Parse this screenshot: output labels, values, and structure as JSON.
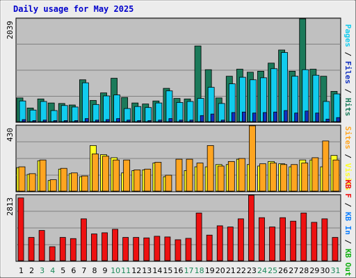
{
  "title": "Daily usage for May 2025",
  "colors": {
    "background": "#ececec",
    "panel": "#c0c0c0",
    "hits": "#1b7a5a",
    "files": "#11ccee",
    "pages": "#1030c0",
    "visits": "#ffff22",
    "sites": "#ffa520",
    "kbin": "#0f80ff",
    "kbout": "#11b011",
    "kbf": "#ee1111",
    "weekend_label": "#1b8a5a"
  },
  "chart_data": [
    {
      "type": "bar",
      "categories": [
        "1",
        "2",
        "3",
        "4",
        "5",
        "6",
        "7",
        "8",
        "9",
        "10",
        "11",
        "12",
        "13",
        "14",
        "15",
        "16",
        "17",
        "18",
        "19",
        "20",
        "21",
        "22",
        "23",
        "24",
        "25",
        "26",
        "27",
        "28",
        "29",
        "30",
        "31"
      ],
      "ymax_label": "2039",
      "ylim": [
        0,
        2039
      ],
      "series": [
        {
          "name": "Hits",
          "values": [
            470,
            270,
            450,
            370,
            360,
            330,
            830,
            420,
            570,
            860,
            480,
            370,
            350,
            410,
            660,
            460,
            450,
            1500,
            1030,
            470,
            900,
            1040,
            980,
            1000,
            1160,
            1420,
            1000,
            2039,
            1040,
            900,
            600
          ]
        },
        {
          "name": "Files",
          "values": [
            410,
            230,
            400,
            220,
            320,
            290,
            770,
            340,
            510,
            530,
            260,
            300,
            280,
            370,
            610,
            380,
            400,
            460,
            680,
            360,
            750,
            880,
            830,
            870,
            1050,
            1370,
            900,
            1030,
            920,
            400,
            550
          ]
        },
        {
          "name": "Pages",
          "values": [
            40,
            20,
            30,
            20,
            20,
            20,
            60,
            30,
            40,
            60,
            30,
            20,
            20,
            30,
            60,
            30,
            30,
            120,
            150,
            30,
            180,
            190,
            170,
            180,
            190,
            220,
            170,
            210,
            170,
            50,
            80
          ]
        }
      ],
      "legend": [
        "Pages",
        "Files",
        "Hits"
      ]
    },
    {
      "type": "bar",
      "ymax_label": "430",
      "ylim": [
        0,
        430
      ],
      "series": [
        {
          "name": "Visits",
          "values": [
            155,
            110,
            200,
            70,
            145,
            115,
            95,
            300,
            240,
            220,
            120,
            135,
            140,
            185,
            95,
            0,
            135,
            160,
            160,
            175,
            175,
            210,
            175,
            165,
            195,
            180,
            160,
            205,
            205,
            160,
            235
          ]
        },
        {
          "name": "Sites",
          "values": [
            160,
            115,
            205,
            75,
            150,
            120,
            100,
            245,
            230,
            205,
            205,
            140,
            145,
            190,
            105,
            210,
            210,
            185,
            300,
            165,
            195,
            215,
            430,
            180,
            185,
            175,
            175,
            185,
            220,
            330,
            205
          ]
        }
      ],
      "legend": [
        "Sites",
        "Visits"
      ]
    },
    {
      "type": "bar",
      "ymax_label": "2813",
      "ylim": [
        0,
        2813
      ],
      "series": [
        {
          "name": "KB F",
          "values": [
            2700,
            1000,
            1300,
            600,
            1000,
            950,
            1800,
            1150,
            1200,
            1350,
            1000,
            1000,
            980,
            1050,
            1020,
            900,
            960,
            2050,
            1100,
            1500,
            1450,
            1800,
            2813,
            1850,
            1450,
            1850,
            1700,
            2050,
            1650,
            1800,
            1000
          ]
        }
      ],
      "legend": [
        "KB F",
        "KB In",
        "KB Out"
      ]
    }
  ],
  "right_legend_top": [
    {
      "text": "Pages",
      "color": "#11ccee"
    },
    {
      "text": " / ",
      "color": "#000000"
    },
    {
      "text": "Files",
      "color": "#1030c0"
    },
    {
      "text": " / ",
      "color": "#000000"
    },
    {
      "text": "Hits",
      "color": "#1b7a5a"
    }
  ],
  "right_legend_mid": [
    {
      "text": "Sites",
      "color": "#ffa520"
    },
    {
      "text": " / ",
      "color": "#000000"
    },
    {
      "text": "Visits",
      "color": "#ffff22"
    }
  ],
  "right_legend_bot": [
    {
      "text": "KB F",
      "color": "#ee1111"
    },
    {
      "text": " / ",
      "color": "#000000"
    },
    {
      "text": "KB In",
      "color": "#0f80ff"
    },
    {
      "text": " / ",
      "color": "#000000"
    },
    {
      "text": "KB Out",
      "color": "#11b011"
    }
  ],
  "weekend_days": [
    "3",
    "4",
    "10",
    "11",
    "17",
    "18",
    "24",
    "25",
    "31"
  ]
}
